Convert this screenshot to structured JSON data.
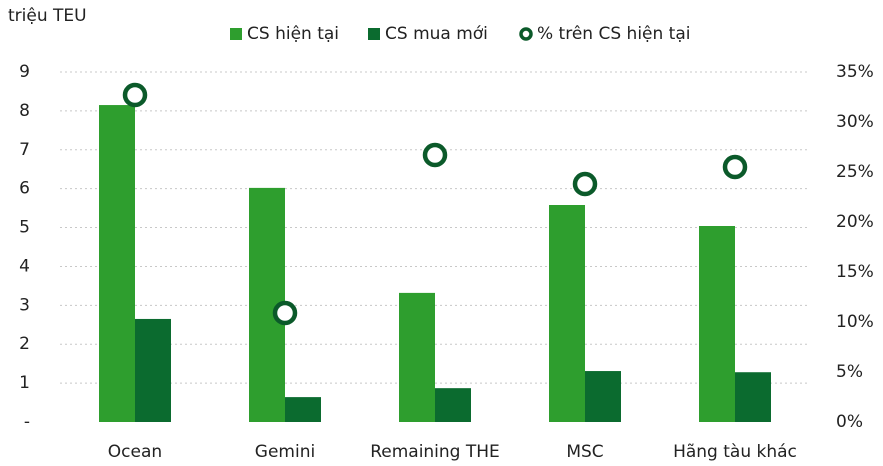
{
  "chart_data": {
    "type": "bar",
    "y_label": "triệu TEU",
    "categories": [
      "Ocean",
      "Gemini",
      "Remaining THE",
      "MSC",
      "Hãng tàu khác"
    ],
    "series": [
      {
        "name": "CS hiện tại",
        "type": "bar",
        "color": "#2e9e2e",
        "values": [
          8.15,
          6.02,
          3.32,
          5.58,
          5.04
        ]
      },
      {
        "name": "CS mua mới",
        "type": "bar",
        "color": "#0b6b2f",
        "values": [
          2.65,
          0.64,
          0.87,
          1.31,
          1.28
        ]
      },
      {
        "name": "% trên CS hiện tại",
        "type": "scatter",
        "axis": "y2",
        "color": "#0b5a2a",
        "values": [
          32.7,
          10.9,
          26.7,
          23.8,
          25.5
        ]
      }
    ],
    "ylim": [
      0,
      9
    ],
    "yticks": [
      {
        "value": 0,
        "label": "-"
      },
      1,
      2,
      3,
      4,
      5,
      6,
      7,
      8,
      9
    ],
    "y2lim": [
      0,
      35
    ],
    "y2ticks": [
      {
        "value": 0,
        "label": "0%"
      },
      {
        "value": 5,
        "label": "5%"
      },
      {
        "value": 10,
        "label": "10%"
      },
      {
        "value": 15,
        "label": "15%"
      },
      {
        "value": 20,
        "label": "20%"
      },
      {
        "value": 25,
        "label": "25%"
      },
      {
        "value": 30,
        "label": "30%"
      },
      {
        "value": 35,
        "label": "35%"
      }
    ],
    "grid": true,
    "legend": "top"
  }
}
